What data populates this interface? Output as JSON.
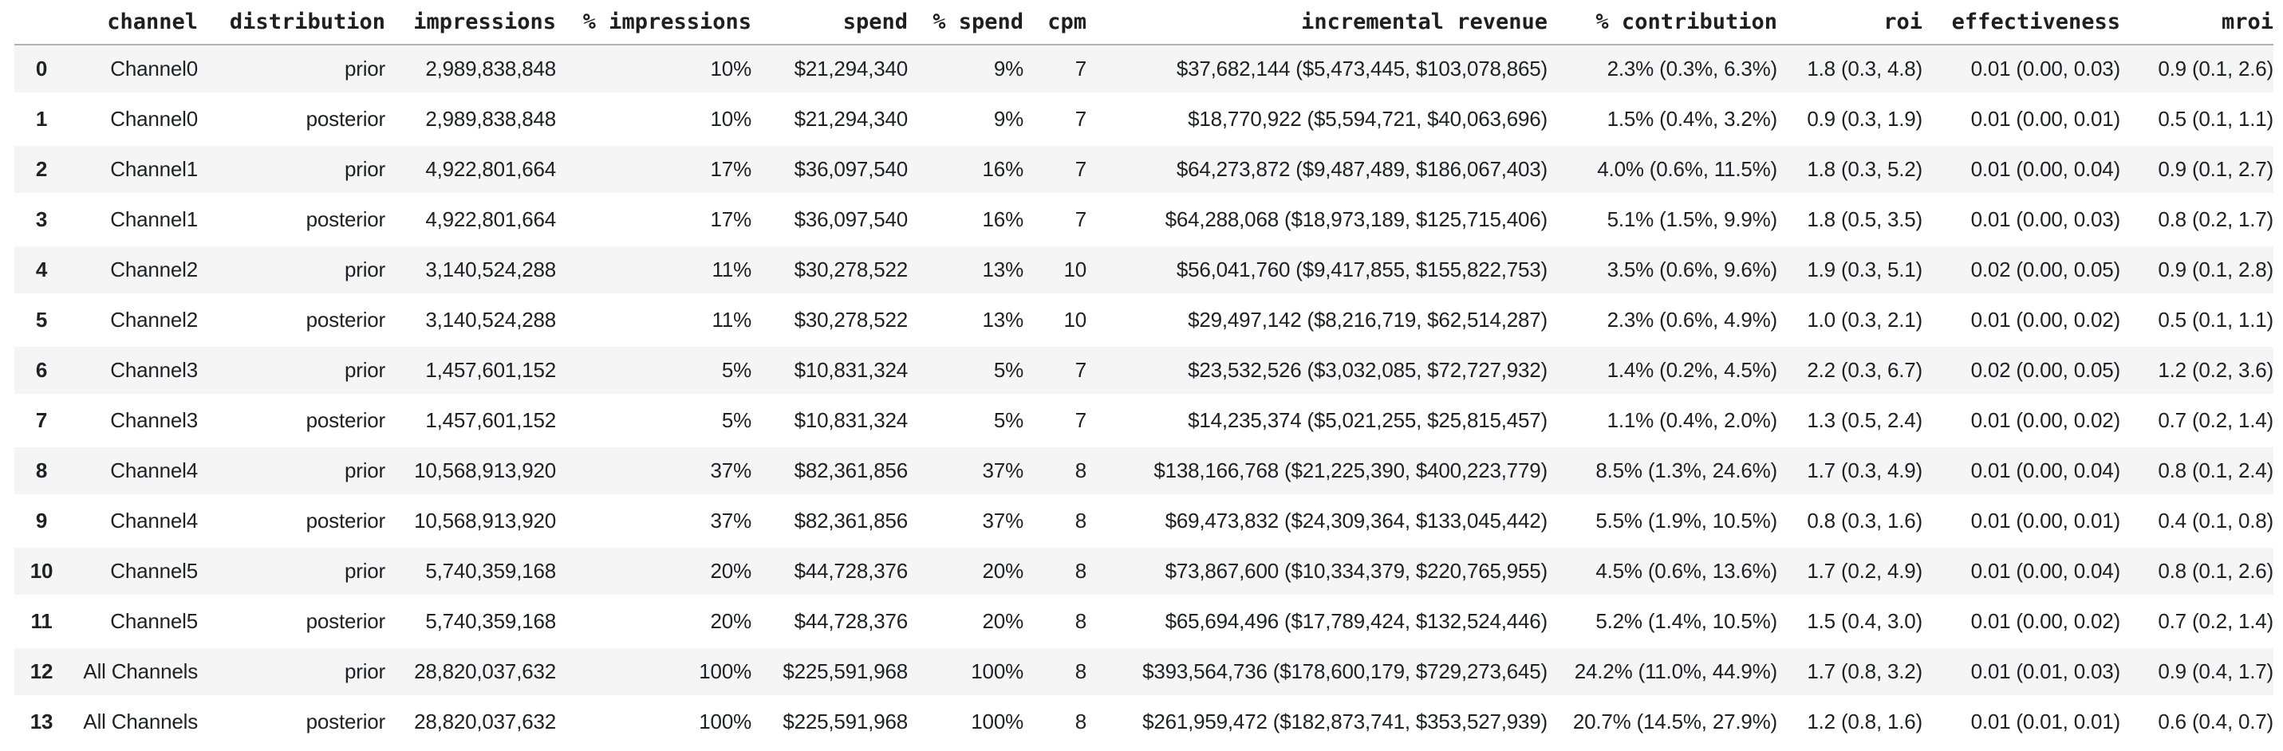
{
  "chart_data": {
    "type": "table",
    "columns": [
      "",
      "channel",
      "distribution",
      "impressions",
      "% impressions",
      "spend",
      "% spend",
      "cpm",
      "incremental revenue",
      "% contribution",
      "roi",
      "effectiveness",
      "mroi"
    ],
    "rows": [
      [
        "0",
        "Channel0",
        "prior",
        "2,989,838,848",
        "10%",
        "$21,294,340",
        "9%",
        "7",
        "$37,682,144 ($5,473,445, $103,078,865)",
        "2.3% (0.3%, 6.3%)",
        "1.8 (0.3, 4.8)",
        "0.01 (0.00, 0.03)",
        "0.9 (0.1, 2.6)"
      ],
      [
        "1",
        "Channel0",
        "posterior",
        "2,989,838,848",
        "10%",
        "$21,294,340",
        "9%",
        "7",
        "$18,770,922 ($5,594,721, $40,063,696)",
        "1.5% (0.4%, 3.2%)",
        "0.9 (0.3, 1.9)",
        "0.01 (0.00, 0.01)",
        "0.5 (0.1, 1.1)"
      ],
      [
        "2",
        "Channel1",
        "prior",
        "4,922,801,664",
        "17%",
        "$36,097,540",
        "16%",
        "7",
        "$64,273,872 ($9,487,489, $186,067,403)",
        "4.0% (0.6%, 11.5%)",
        "1.8 (0.3, 5.2)",
        "0.01 (0.00, 0.04)",
        "0.9 (0.1, 2.7)"
      ],
      [
        "3",
        "Channel1",
        "posterior",
        "4,922,801,664",
        "17%",
        "$36,097,540",
        "16%",
        "7",
        "$64,288,068 ($18,973,189, $125,715,406)",
        "5.1% (1.5%, 9.9%)",
        "1.8 (0.5, 3.5)",
        "0.01 (0.00, 0.03)",
        "0.8 (0.2, 1.7)"
      ],
      [
        "4",
        "Channel2",
        "prior",
        "3,140,524,288",
        "11%",
        "$30,278,522",
        "13%",
        "10",
        "$56,041,760 ($9,417,855, $155,822,753)",
        "3.5% (0.6%, 9.6%)",
        "1.9 (0.3, 5.1)",
        "0.02 (0.00, 0.05)",
        "0.9 (0.1, 2.8)"
      ],
      [
        "5",
        "Channel2",
        "posterior",
        "3,140,524,288",
        "11%",
        "$30,278,522",
        "13%",
        "10",
        "$29,497,142 ($8,216,719, $62,514,287)",
        "2.3% (0.6%, 4.9%)",
        "1.0 (0.3, 2.1)",
        "0.01 (0.00, 0.02)",
        "0.5 (0.1, 1.1)"
      ],
      [
        "6",
        "Channel3",
        "prior",
        "1,457,601,152",
        "5%",
        "$10,831,324",
        "5%",
        "7",
        "$23,532,526 ($3,032,085, $72,727,932)",
        "1.4% (0.2%, 4.5%)",
        "2.2 (0.3, 6.7)",
        "0.02 (0.00, 0.05)",
        "1.2 (0.2, 3.6)"
      ],
      [
        "7",
        "Channel3",
        "posterior",
        "1,457,601,152",
        "5%",
        "$10,831,324",
        "5%",
        "7",
        "$14,235,374 ($5,021,255, $25,815,457)",
        "1.1% (0.4%, 2.0%)",
        "1.3 (0.5, 2.4)",
        "0.01 (0.00, 0.02)",
        "0.7 (0.2, 1.4)"
      ],
      [
        "8",
        "Channel4",
        "prior",
        "10,568,913,920",
        "37%",
        "$82,361,856",
        "37%",
        "8",
        "$138,166,768 ($21,225,390, $400,223,779)",
        "8.5% (1.3%, 24.6%)",
        "1.7 (0.3, 4.9)",
        "0.01 (0.00, 0.04)",
        "0.8 (0.1, 2.4)"
      ],
      [
        "9",
        "Channel4",
        "posterior",
        "10,568,913,920",
        "37%",
        "$82,361,856",
        "37%",
        "8",
        "$69,473,832 ($24,309,364, $133,045,442)",
        "5.5% (1.9%, 10.5%)",
        "0.8 (0.3, 1.6)",
        "0.01 (0.00, 0.01)",
        "0.4 (0.1, 0.8)"
      ],
      [
        "10",
        "Channel5",
        "prior",
        "5,740,359,168",
        "20%",
        "$44,728,376",
        "20%",
        "8",
        "$73,867,600 ($10,334,379, $220,765,955)",
        "4.5% (0.6%, 13.6%)",
        "1.7 (0.2, 4.9)",
        "0.01 (0.00, 0.04)",
        "0.8 (0.1, 2.6)"
      ],
      [
        "11",
        "Channel5",
        "posterior",
        "5,740,359,168",
        "20%",
        "$44,728,376",
        "20%",
        "8",
        "$65,694,496 ($17,789,424, $132,524,446)",
        "5.2% (1.4%, 10.5%)",
        "1.5 (0.4, 3.0)",
        "0.01 (0.00, 0.02)",
        "0.7 (0.2, 1.4)"
      ],
      [
        "12",
        "All Channels",
        "prior",
        "28,820,037,632",
        "100%",
        "$225,591,968",
        "100%",
        "8",
        "$393,564,736 ($178,600,179, $729,273,645)",
        "24.2% (11.0%, 44.9%)",
        "1.7 (0.8, 3.2)",
        "0.01 (0.01, 0.03)",
        "0.9 (0.4, 1.7)"
      ],
      [
        "13",
        "All Channels",
        "posterior",
        "28,820,037,632",
        "100%",
        "$225,591,968",
        "100%",
        "8",
        "$261,959,472 ($182,873,741, $353,527,939)",
        "20.7% (14.5%, 27.9%)",
        "1.2 (0.8, 1.6)",
        "0.01 (0.01, 0.01)",
        "0.6 (0.4, 0.7)"
      ]
    ],
    "layout": {
      "striped_rows": "odd",
      "stripe_color": "#f5f5f5",
      "header_border_color": "#b3b3b3",
      "text_color": "#202124",
      "grid": false,
      "column_alignment": "right",
      "index_column_alignment": "center"
    }
  }
}
